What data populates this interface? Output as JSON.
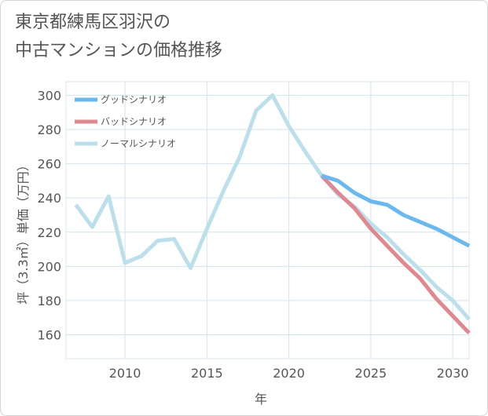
{
  "page": {
    "title_line1": "東京都練馬区羽沢の",
    "title_line2": "中古マンションの価格推移"
  },
  "chart_data": {
    "type": "line",
    "title": "東京都練馬区羽沢の中古マンションの価格推移",
    "xlabel": "年",
    "ylabel": "坪（3.3㎡）単価（万円）",
    "xlim": [
      2006.4,
      2031
    ],
    "ylim": [
      146,
      308
    ],
    "x_ticks": [
      2010,
      2015,
      2020,
      2025,
      2030
    ],
    "y_ticks": [
      160,
      180,
      200,
      220,
      240,
      260,
      280,
      300
    ],
    "x_tick_labels": [
      "2010",
      "2015",
      "2020",
      "2025",
      "2030"
    ],
    "y_tick_labels": [
      "160",
      "180",
      "200",
      "220",
      "240",
      "260",
      "280",
      "300"
    ],
    "grid": true,
    "legend_position": "top-left",
    "series": [
      {
        "name": "グッドシナリオ",
        "color": "#6ab8ee",
        "x": [
          2022,
          2023,
          2024,
          2025,
          2026,
          2027,
          2028,
          2029,
          2030,
          2031
        ],
        "values": [
          253,
          250,
          243,
          238,
          236,
          230,
          226,
          222,
          217,
          212
        ]
      },
      {
        "name": "バッドシナリオ",
        "color": "#e08890",
        "x": [
          2022,
          2023,
          2024,
          2025,
          2026,
          2027,
          2028,
          2029,
          2030,
          2031
        ],
        "values": [
          253,
          243,
          234,
          222,
          212,
          202,
          193,
          181,
          171,
          161
        ]
      },
      {
        "name": "ノーマルシナリオ",
        "color": "#bcdfec",
        "x": [
          2007,
          2008,
          2009,
          2010,
          2011,
          2012,
          2013,
          2014,
          2015,
          2016,
          2017,
          2018,
          2019,
          2020,
          2021,
          2022,
          2023,
          2024,
          2025,
          2026,
          2027,
          2028,
          2029,
          2030,
          2031
        ],
        "values": [
          236,
          223,
          241,
          202,
          206,
          215,
          216,
          199,
          222,
          244,
          264,
          291,
          300,
          282,
          267,
          253,
          242,
          235,
          225,
          217,
          207,
          198,
          188,
          180,
          169
        ]
      }
    ]
  }
}
